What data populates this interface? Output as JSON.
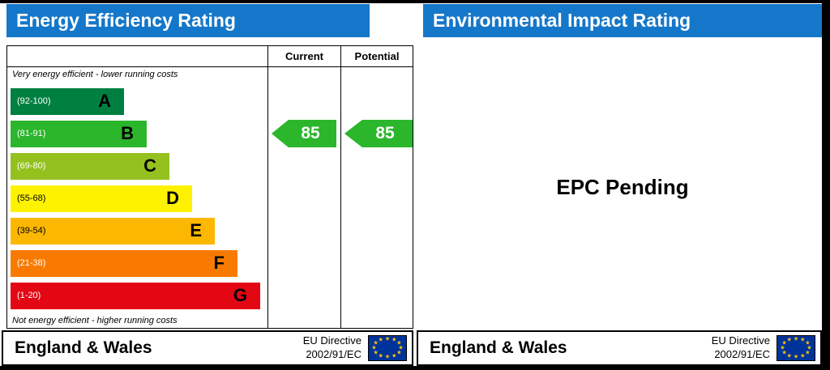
{
  "left": {
    "title": "Energy Efficiency Rating",
    "col_current": "Current",
    "col_potential": "Potential",
    "note_top": "Very energy efficient - lower running costs",
    "note_bottom": "Not energy efficient - higher running costs",
    "footer": {
      "region": "England & Wales",
      "eu_line1": "EU Directive",
      "eu_line2": "2002/91/EC"
    }
  },
  "right": {
    "title": "Environmental Impact Rating",
    "pending": "EPC Pending",
    "footer": {
      "region": "England & Wales",
      "eu_line1": "EU Directive",
      "eu_line2": "2002/91/EC"
    }
  },
  "colors": {
    "header_blue": "#1577c9",
    "arrow_green": "#2bb62b",
    "eu_flag_blue": "#003399",
    "eu_star_yellow": "#ffcc00"
  },
  "chart_data": {
    "type": "bar",
    "title": "Energy Efficiency Rating",
    "subtitle_right_panel": "Environmental Impact Rating",
    "right_panel_status": "EPC Pending",
    "columns": [
      "Current",
      "Potential"
    ],
    "bands": [
      {
        "letter": "A",
        "range_label": "(92-100)",
        "min": 92,
        "max": 100,
        "color": "#008040",
        "text_color": "#ffffff"
      },
      {
        "letter": "B",
        "range_label": "(81-91)",
        "min": 81,
        "max": 91,
        "color": "#2bb62b",
        "text_color": "#ffffff"
      },
      {
        "letter": "C",
        "range_label": "(69-80)",
        "min": 69,
        "max": 80,
        "color": "#95c11f",
        "text_color": "#ffffff"
      },
      {
        "letter": "D",
        "range_label": "(55-68)",
        "min": 55,
        "max": 68,
        "color": "#fff200",
        "text_color": "#000000"
      },
      {
        "letter": "E",
        "range_label": "(39-54)",
        "min": 39,
        "max": 54,
        "color": "#fcb700",
        "text_color": "#000000"
      },
      {
        "letter": "F",
        "range_label": "(21-38)",
        "min": 21,
        "max": 38,
        "color": "#f97a00",
        "text_color": "#ffffff"
      },
      {
        "letter": "G",
        "range_label": "(1-20)",
        "min": 1,
        "max": 20,
        "color": "#e30613",
        "text_color": "#ffffff"
      }
    ],
    "current": {
      "value": 85,
      "band": "B"
    },
    "potential": {
      "value": 85,
      "band": "B"
    }
  }
}
